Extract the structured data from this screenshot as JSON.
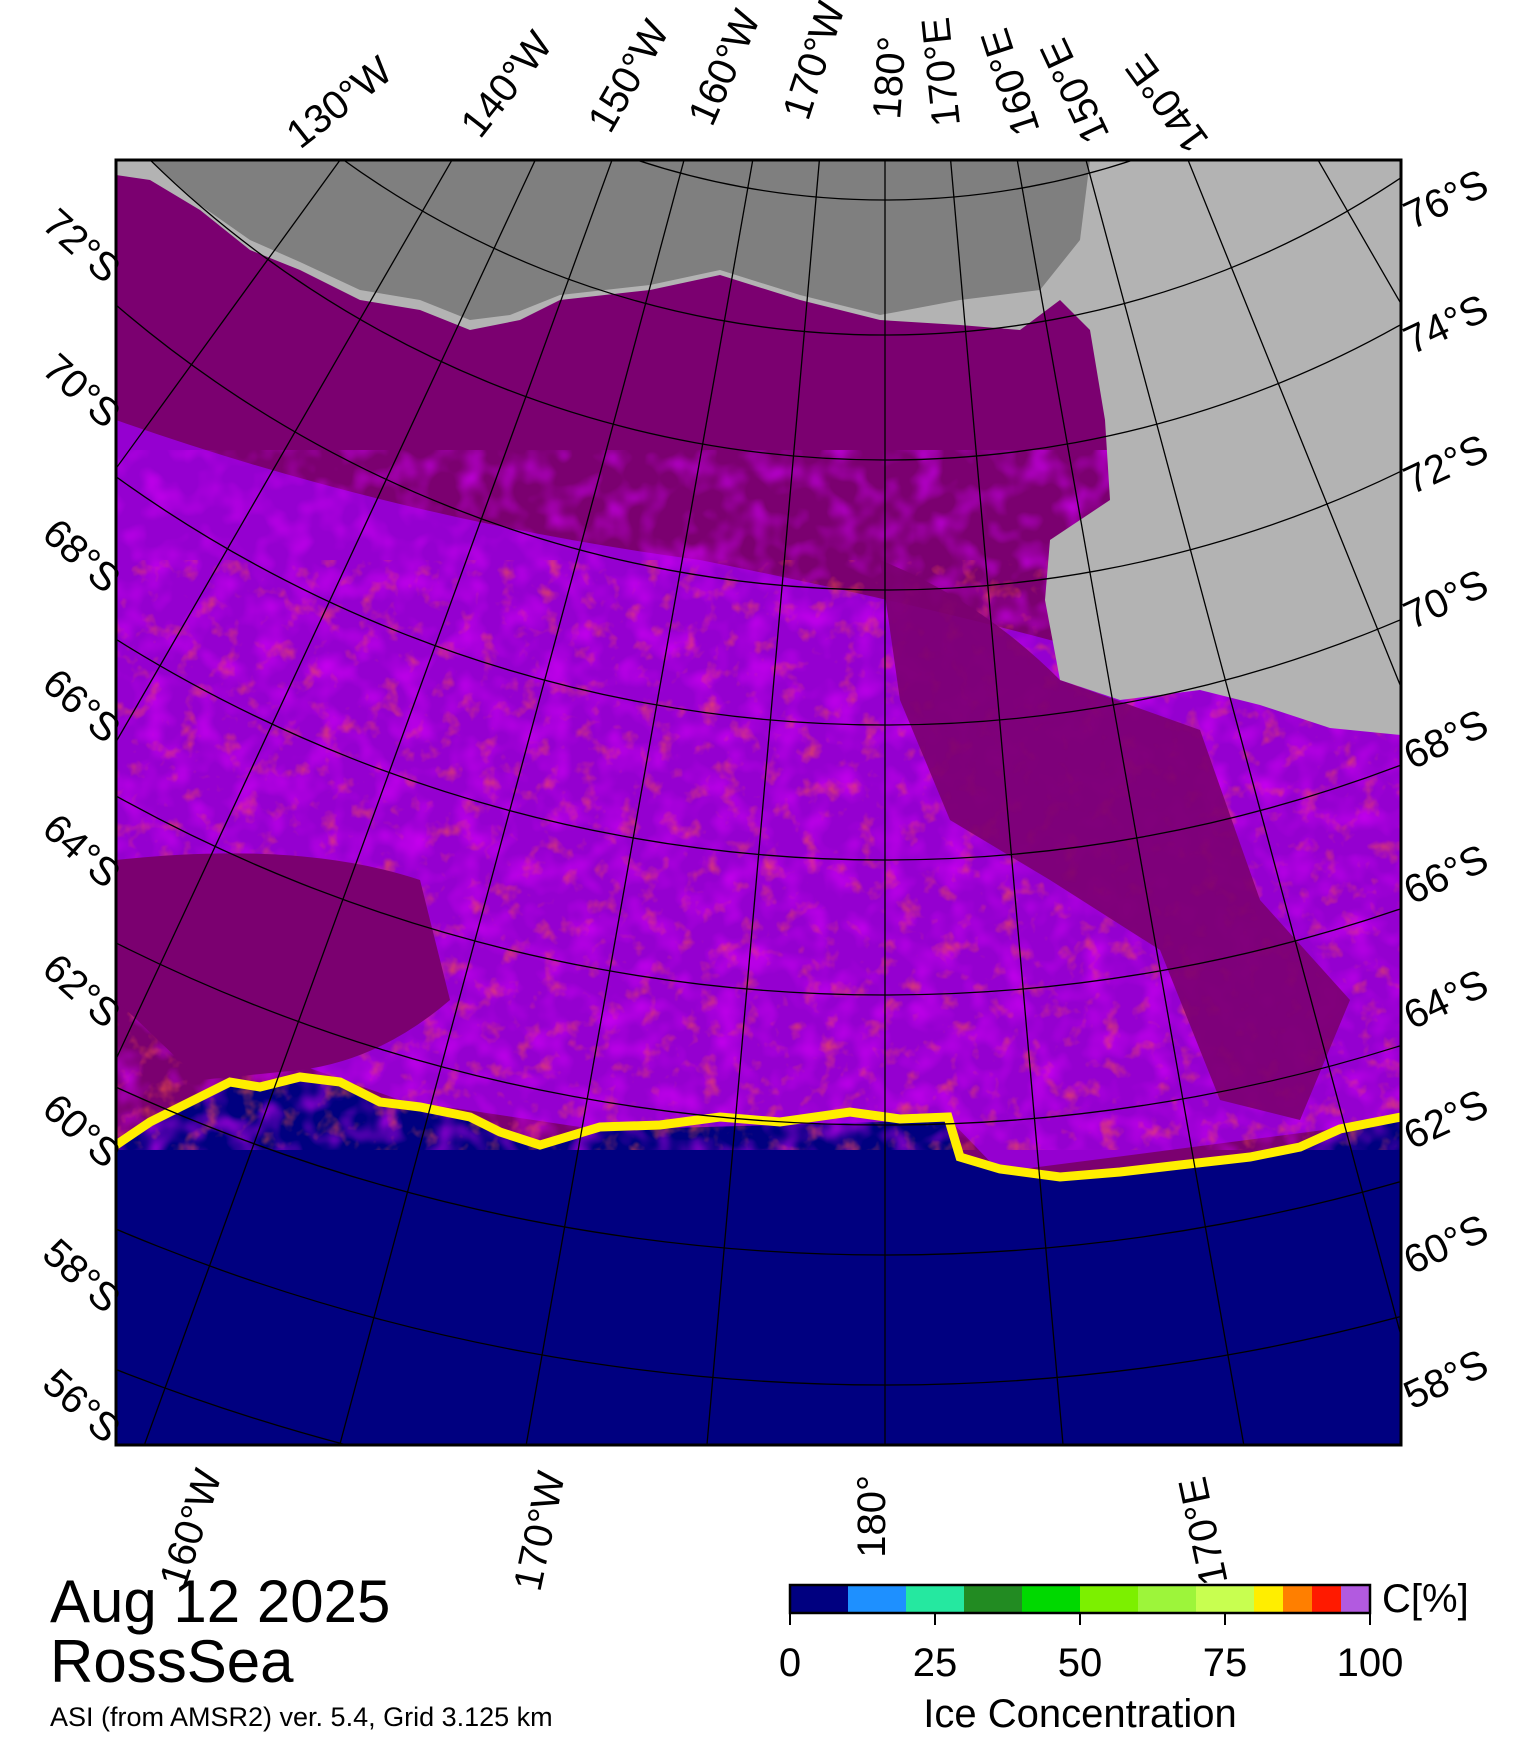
{
  "map": {
    "date": "Aug 12 2025",
    "region": "RossSea",
    "source": "ASI (from AMSR2) ver. 5.4,  Grid 3.125 km",
    "colors": {
      "open_water": "#000080",
      "pack_ice": "#7b0070",
      "high_concentration": "#9a00e0",
      "medium_concentration": "#ff2000",
      "ice_edge": "#ffee00",
      "land": "#b3b3b3",
      "ice_shelf": "#7f7f7f"
    },
    "top_lon_labels": [
      "130°W",
      "140°W",
      "150°W",
      "160°W",
      "170°W",
      "180°",
      "170°E",
      "160°E",
      "150°E",
      "140°E"
    ],
    "bottom_lon_labels": [
      "160°W",
      "170°W",
      "180°",
      "170°E"
    ],
    "left_lat_labels": [
      "72°S",
      "70°S",
      "68°S",
      "66°S",
      "64°S",
      "62°S",
      "60°S",
      "58°S",
      "56°S"
    ],
    "right_lat_labels": [
      "76°S",
      "74°S",
      "72°S",
      "70°S",
      "68°S",
      "66°S",
      "64°S",
      "62°S",
      "60°S",
      "58°S"
    ]
  },
  "legend": {
    "title": "Ice Concentration",
    "unit": "C[%]",
    "ticks": [
      "0",
      "25",
      "50",
      "75",
      "100"
    ],
    "colors": [
      "#000080",
      "#1e90ff",
      "#25e8a0",
      "#228b22",
      "#00d900",
      "#7cf000",
      "#9df53a",
      "#c8ff50",
      "#ffee00",
      "#ff7f00",
      "#ff1a00",
      "#b25ae0",
      "#9a00d6"
    ]
  }
}
